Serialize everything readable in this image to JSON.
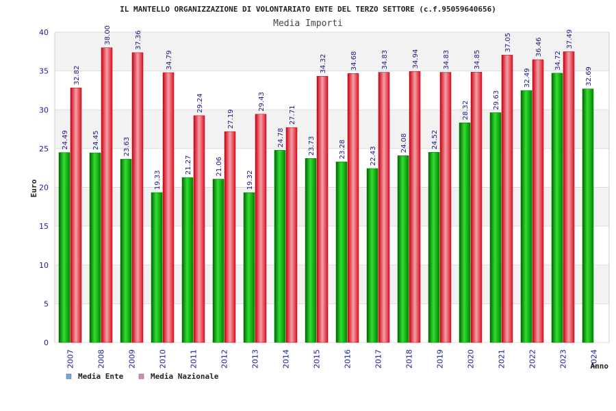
{
  "chart_data": {
    "type": "bar",
    "title": "IL MANTELLO ORGANIZZAZIONE DI VOLONTARIATO ENTE DEL TERZO SETTORE (c.f.95059640656)",
    "subtitle": "Media Importi",
    "xlabel": "Anno",
    "ylabel": "Euro",
    "ylim": [
      0,
      40
    ],
    "yticks": [
      0,
      5,
      10,
      15,
      20,
      25,
      30,
      35,
      40
    ],
    "categories": [
      "2007",
      "2008",
      "2009",
      "2010",
      "2011",
      "2012",
      "2013",
      "2014",
      "2015",
      "2016",
      "2017",
      "2018",
      "2019",
      "2020",
      "2021",
      "2022",
      "2023",
      "2024"
    ],
    "series": [
      {
        "name": "Media Ente",
        "color": "#00b000",
        "legend_color": "#6fa8e6",
        "values": [
          24.49,
          24.45,
          23.63,
          19.33,
          21.27,
          21.06,
          19.32,
          24.78,
          23.73,
          23.28,
          22.43,
          24.08,
          24.52,
          28.32,
          29.63,
          32.49,
          34.72,
          32.69
        ],
        "labels": [
          "24.49",
          "24.45",
          "23.63",
          "19.33",
          "21.27",
          "21.06",
          "19.32",
          "24.78",
          "23.73",
          "23.28",
          "22.43",
          "24.08",
          "24.52",
          "28.32",
          "29.63",
          "32.49",
          "34.72",
          "32.69"
        ]
      },
      {
        "name": "Media Nazionale",
        "color": "#ee2233",
        "legend_color": "#dd88bb",
        "values": [
          32.82,
          38.0,
          37.36,
          34.79,
          29.24,
          27.19,
          29.43,
          27.71,
          34.32,
          34.68,
          34.83,
          34.94,
          34.83,
          34.85,
          37.05,
          36.46,
          37.49,
          null
        ],
        "labels": [
          "32.82",
          "38.00",
          "37.36",
          "34.79",
          "29.24",
          "27.19",
          "29.43",
          "27.71",
          "34.32",
          "34.68",
          "34.83",
          "34.94",
          "34.83",
          "34.85",
          "37.05",
          "36.46",
          "37.49",
          null
        ]
      }
    ],
    "legend_position": "bottom-left",
    "grid": true
  }
}
